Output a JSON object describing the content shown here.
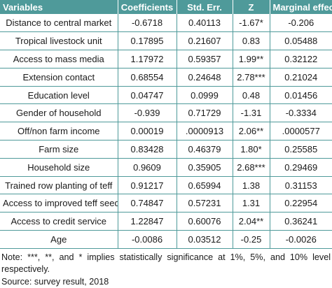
{
  "table": {
    "headers": [
      "Variables",
      "Coefficients",
      "Std. Err.",
      "Z",
      "Marginal effect"
    ],
    "rows": [
      [
        "Distance to central market",
        "-0.6718",
        "0.40113",
        "-1.67*",
        "-0.206"
      ],
      [
        "Tropical livestock unit",
        "0.17895",
        "0.21607",
        "0.83",
        "0.05488"
      ],
      [
        "Access to mass media",
        "1.17972",
        "0.59357",
        "1.99**",
        "0.32122"
      ],
      [
        "Extension contact",
        "0.68554",
        "0.24648",
        "2.78***",
        "0.21024"
      ],
      [
        "Education level",
        "0.04747",
        "0.0999",
        "0.48",
        "0.01456"
      ],
      [
        "Gender of household",
        "-0.939",
        "0.71729",
        "-1.31",
        "-0.3334"
      ],
      [
        "Off/non farm income",
        "0.00019",
        ".0000913",
        "2.06**",
        ".0000577"
      ],
      [
        "Farm size",
        "0.83428",
        "0.46379",
        "1.80*",
        "0.25585"
      ],
      [
        "Household size",
        "0.9609",
        "0.35905",
        "2.68***",
        "0.29469"
      ],
      [
        "Trained row planting of teff",
        "0.91217",
        "0.65994",
        "1.38",
        "0.31153"
      ],
      [
        "Access to improved teff seed",
        "0.74847",
        "0.57231",
        "1.31",
        "0.22954"
      ],
      [
        "Access to credit service",
        "1.22847",
        "0.60076",
        "2.04**",
        "0.36241"
      ],
      [
        "Age",
        "-0.0086",
        "0.03512",
        "-0.25",
        "-0.0026"
      ]
    ]
  },
  "notes": {
    "significance": "Note: ***, **, and * implies statistically significance at 1%, 5%, and 10% level respectively.",
    "source": "Source: survey result, 2018"
  },
  "colors": {
    "header_bg": "#4f9a9a",
    "grid": "#4f9a9a",
    "header_text": "#ffffff"
  }
}
